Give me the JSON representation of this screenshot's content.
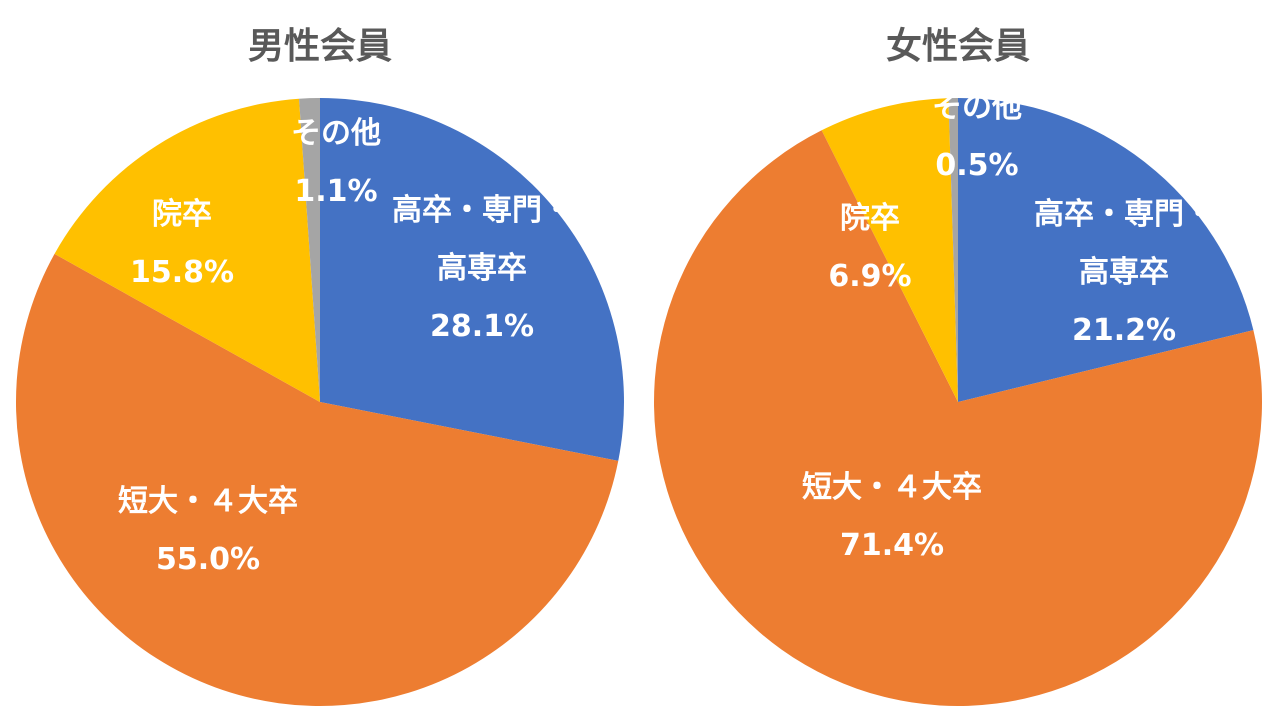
{
  "chart_data": [
    {
      "type": "pie",
      "title": "男性会員",
      "slices": [
        {
          "name": "高卒・専門・高専卒",
          "label_lines": [
            "高卒・専門・",
            "高専卒"
          ],
          "value": 28.1,
          "value_label": "28.1%",
          "color": "#4472C4"
        },
        {
          "name": "短大・４大卒",
          "label_lines": [
            "短大・４大卒"
          ],
          "value": 55.0,
          "value_label": "55.0%",
          "color": "#ED7D31"
        },
        {
          "name": "院卒",
          "label_lines": [
            "院卒"
          ],
          "value": 15.8,
          "value_label": "15.8%",
          "color": "#FFC000"
        },
        {
          "name": "その他",
          "label_lines": [
            "その他"
          ],
          "value": 1.1,
          "value_label": "1.1%",
          "color": "#A5A5A5"
        }
      ]
    },
    {
      "type": "pie",
      "title": "女性会員",
      "slices": [
        {
          "name": "高卒・専門・高専卒",
          "label_lines": [
            "高卒・専門・",
            "高専卒"
          ],
          "value": 21.2,
          "value_label": "21.2%",
          "color": "#4472C4"
        },
        {
          "name": "短大・４大卒",
          "label_lines": [
            "短大・４大卒"
          ],
          "value": 71.4,
          "value_label": "71.4%",
          "color": "#ED7D31"
        },
        {
          "name": "院卒",
          "label_lines": [
            "院卒"
          ],
          "value": 6.9,
          "value_label": "6.9%",
          "color": "#FFC000"
        },
        {
          "name": "その他",
          "label_lines": [
            "その他"
          ],
          "value": 0.5,
          "value_label": "0.5%",
          "color": "#A5A5A5"
        }
      ]
    }
  ]
}
